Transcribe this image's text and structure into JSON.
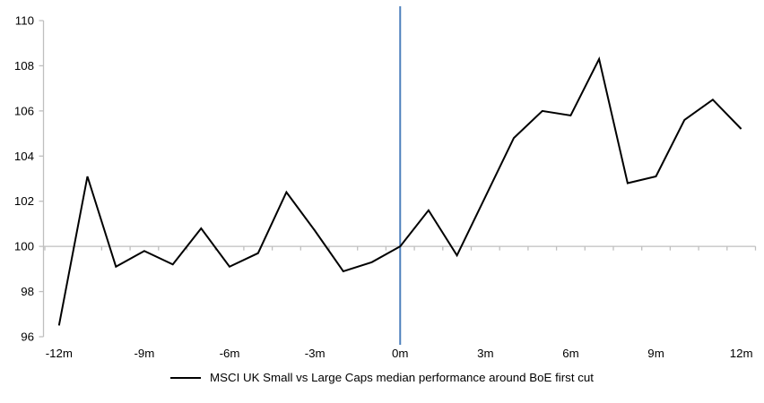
{
  "chart_data": {
    "type": "line",
    "title": "",
    "legend": "MSCI UK Small vs Large Caps median performance around BoE first cut",
    "x": [
      -12,
      -11,
      -10,
      -9,
      -8,
      -7,
      -6,
      -5,
      -4,
      -3,
      -2,
      -1,
      0,
      1,
      2,
      3,
      4,
      5,
      6,
      7,
      8,
      9,
      10,
      11,
      12
    ],
    "series": [
      {
        "name": "MSCI UK Small vs Large Caps median performance around BoE first cut",
        "values": [
          96.5,
          103.1,
          99.1,
          99.8,
          99.2,
          100.8,
          99.1,
          99.7,
          102.4,
          100.7,
          98.9,
          99.3,
          100.0,
          101.6,
          99.6,
          102.2,
          104.8,
          106.0,
          105.8,
          108.3,
          102.8,
          103.1,
          105.6,
          106.5,
          105.2
        ]
      }
    ],
    "x_tick_positions": [
      -12,
      -9,
      -6,
      -3,
      0,
      3,
      6,
      9,
      12
    ],
    "x_tick_labels": [
      "-12m",
      "-9m",
      "-6m",
      "-3m",
      "0m",
      "3m",
      "6m",
      "9m",
      "12m"
    ],
    "ylim": [
      96,
      110
    ],
    "ytick_step": 2,
    "x_axis_crosses_at": 100,
    "event_line_x": 0,
    "grid": "off",
    "legend_position": "bottom-center",
    "colors": {
      "series": "#000000",
      "event_line": "#4F81BD",
      "axis": "#BFBFBF",
      "text": "#000000",
      "background": "#FFFFFF"
    }
  }
}
